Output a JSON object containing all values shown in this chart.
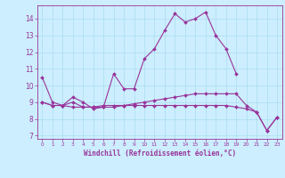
{
  "x": [
    0,
    1,
    2,
    3,
    4,
    5,
    6,
    7,
    8,
    9,
    10,
    11,
    12,
    13,
    14,
    15,
    16,
    17,
    18,
    19,
    20,
    21,
    22,
    23
  ],
  "line1": [
    10.5,
    9.0,
    8.8,
    9.3,
    9.0,
    8.6,
    8.7,
    10.7,
    9.8,
    9.8,
    11.6,
    12.2,
    13.3,
    14.3,
    13.8,
    14.0,
    14.4,
    13.0,
    12.2,
    10.7,
    null,
    null,
    null,
    null
  ],
  "line3": [
    9.0,
    8.8,
    8.8,
    9.0,
    8.7,
    8.7,
    8.8,
    8.8,
    8.8,
    8.9,
    9.0,
    9.1,
    9.2,
    9.3,
    9.4,
    9.5,
    9.5,
    9.5,
    9.5,
    9.5,
    8.8,
    8.4,
    7.3,
    8.1
  ],
  "line4": [
    9.0,
    8.8,
    8.8,
    8.7,
    8.7,
    8.7,
    8.7,
    8.7,
    8.8,
    8.8,
    8.8,
    8.8,
    8.8,
    8.8,
    8.8,
    8.8,
    8.8,
    8.8,
    8.8,
    8.7,
    8.6,
    8.4,
    7.3,
    8.1
  ],
  "bg_color": "#cceeff",
  "line_color": "#993399",
  "grid_color": "#aaddee",
  "xlabel": "Windchill (Refroidissement éolien,°C)",
  "ylim": [
    6.8,
    14.8
  ],
  "xlim": [
    -0.5,
    23.5
  ],
  "yticks": [
    7,
    8,
    9,
    10,
    11,
    12,
    13,
    14
  ],
  "xticks": [
    0,
    1,
    2,
    3,
    4,
    5,
    6,
    7,
    8,
    9,
    10,
    11,
    12,
    13,
    14,
    15,
    16,
    17,
    18,
    19,
    20,
    21,
    22,
    23
  ],
  "marker": "D",
  "markersize": 2.0,
  "linewidth": 0.8
}
